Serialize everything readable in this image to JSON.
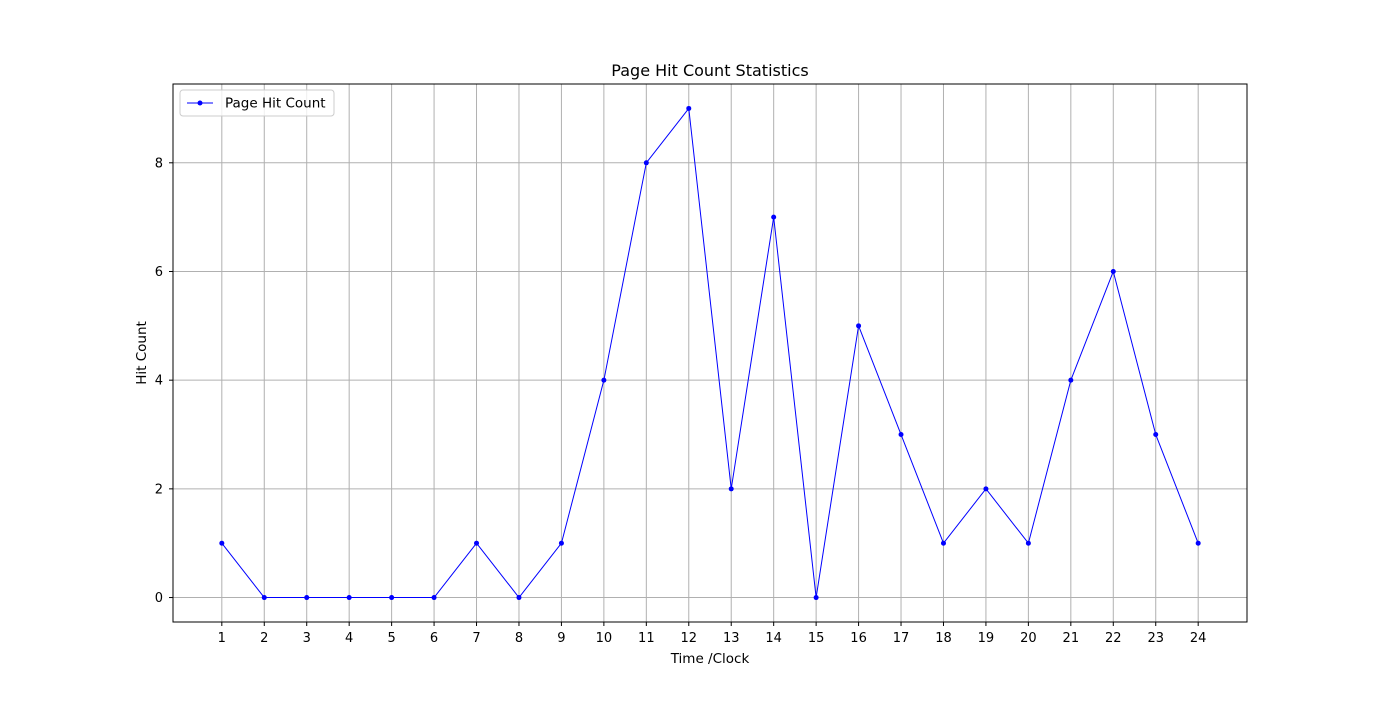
{
  "chart_data": {
    "type": "line",
    "title": "Page Hit Count Statistics",
    "xlabel": "Time /Clock",
    "ylabel": "Hit Count",
    "x": [
      1,
      2,
      3,
      4,
      5,
      6,
      7,
      8,
      9,
      10,
      11,
      12,
      13,
      14,
      15,
      16,
      17,
      18,
      19,
      20,
      21,
      22,
      23,
      24
    ],
    "series": [
      {
        "name": "Page Hit Count",
        "color": "#0000ff",
        "marker": "dot",
        "values": [
          1,
          0,
          0,
          0,
          0,
          0,
          1,
          0,
          1,
          4,
          8,
          9,
          2,
          7,
          0,
          5,
          3,
          1,
          2,
          1,
          4,
          6,
          3,
          1
        ]
      }
    ],
    "xlim": [
      -0.15,
      25.15
    ],
    "ylim": [
      -0.45,
      9.45
    ],
    "xticks": [
      1,
      2,
      3,
      4,
      5,
      6,
      7,
      8,
      9,
      10,
      11,
      12,
      13,
      14,
      15,
      16,
      17,
      18,
      19,
      20,
      21,
      22,
      23,
      24
    ],
    "yticks": [
      0,
      2,
      4,
      6,
      8
    ],
    "grid": true,
    "grid_color": "#b0b0b0",
    "legend_position": "top-left"
  }
}
